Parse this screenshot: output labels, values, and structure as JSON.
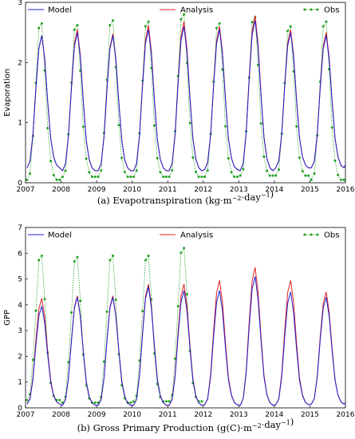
{
  "chart_data": [
    {
      "type": "line",
      "ylabel": "Evaporation",
      "xlim": [
        2007.0,
        2016.0
      ],
      "ylim": [
        0,
        3
      ],
      "x_ticks": [
        "2007",
        "2008",
        "2009",
        "2010",
        "2011",
        "2012",
        "2013",
        "2014",
        "2015",
        "2016"
      ],
      "y_ticks": [
        "0",
        "1",
        "2",
        "3"
      ],
      "legend": [
        "Model",
        "Analysis",
        "Obs"
      ],
      "caption": {
        "main": "(a)  Evapotranspiration (kg·m",
        "sup1": "−2",
        "mid": "·day",
        "sup2": "−1",
        "end": ")"
      },
      "series_style": {
        "Model": {
          "color": "#2020d0",
          "style": "solid"
        },
        "Analysis": {
          "color": "#e02020",
          "style": "solid"
        },
        "Obs": {
          "color": "#20a020",
          "style": "dotted-markers"
        }
      },
      "model_pattern": {
        "min": [
          0.25,
          0.2,
          0.2,
          0.2,
          0.2,
          0.22,
          0.2,
          0.25,
          0.25
        ],
        "peak": [
          2.45,
          2.5,
          2.45,
          2.55,
          2.6,
          2.55,
          2.7,
          2.5,
          2.45
        ]
      },
      "analysis_pattern": {
        "min": [
          0.25,
          0.2,
          0.2,
          0.2,
          0.2,
          0.22,
          0.2,
          0.25,
          0.25
        ],
        "peak": [
          2.45,
          2.55,
          2.48,
          2.62,
          2.68,
          2.6,
          2.78,
          2.55,
          2.5
        ]
      },
      "obs_pattern": {
        "min": [
          0.05,
          0.1,
          0.1,
          0.1,
          0.1,
          0.1,
          0.12,
          0.12,
          0.05
        ],
        "peak": [
          2.65,
          2.62,
          2.7,
          2.68,
          2.8,
          2.65,
          2.75,
          2.6,
          2.68
        ],
        "count": 9
      },
      "end_value": 0.3
    },
    {
      "type": "line",
      "ylabel": "GPP",
      "xlim": [
        2007.0,
        2016.0
      ],
      "ylim": [
        0,
        7
      ],
      "x_ticks": [
        "2007",
        "2008",
        "2009",
        "2010",
        "2011",
        "2012",
        "2013",
        "2014",
        "2015",
        "2016"
      ],
      "y_ticks": [
        "0",
        "1",
        "2",
        "3",
        "4",
        "5",
        "6",
        "7"
      ],
      "legend": [
        "Model",
        "Analysis",
        "Obs"
      ],
      "caption": {
        "main": "(b)  Gross Primary Production (g(C)·m",
        "sup1": "−2",
        "mid": "·day",
        "sup2": "−1",
        "end": ")"
      },
      "series_style": {
        "Model": {
          "color": "#2020d0",
          "style": "solid"
        },
        "Analysis": {
          "color": "#e02020",
          "style": "solid"
        },
        "Obs": {
          "color": "#20a020",
          "style": "dotted-markers"
        }
      },
      "model_pattern": {
        "min": [
          0.15,
          0.1,
          0.1,
          0.1,
          0.1,
          0.12,
          0.1,
          0.12,
          0.15
        ],
        "peak": [
          3.95,
          4.3,
          4.3,
          4.7,
          4.55,
          4.55,
          5.1,
          4.5,
          4.3
        ]
      },
      "analysis_pattern": {
        "min": [
          0.15,
          0.1,
          0.1,
          0.1,
          0.1,
          0.12,
          0.1,
          0.12,
          0.15
        ],
        "peak": [
          4.25,
          4.35,
          4.35,
          4.8,
          4.8,
          4.95,
          5.45,
          4.95,
          4.5
        ]
      },
      "obs_pattern": {
        "min": [
          0.3,
          0.2,
          0.2,
          0.25,
          0.25
        ],
        "peak": [
          5.9,
          5.85,
          5.9,
          5.9,
          6.2
        ],
        "count": 5
      },
      "end_value": 0.2
    }
  ]
}
